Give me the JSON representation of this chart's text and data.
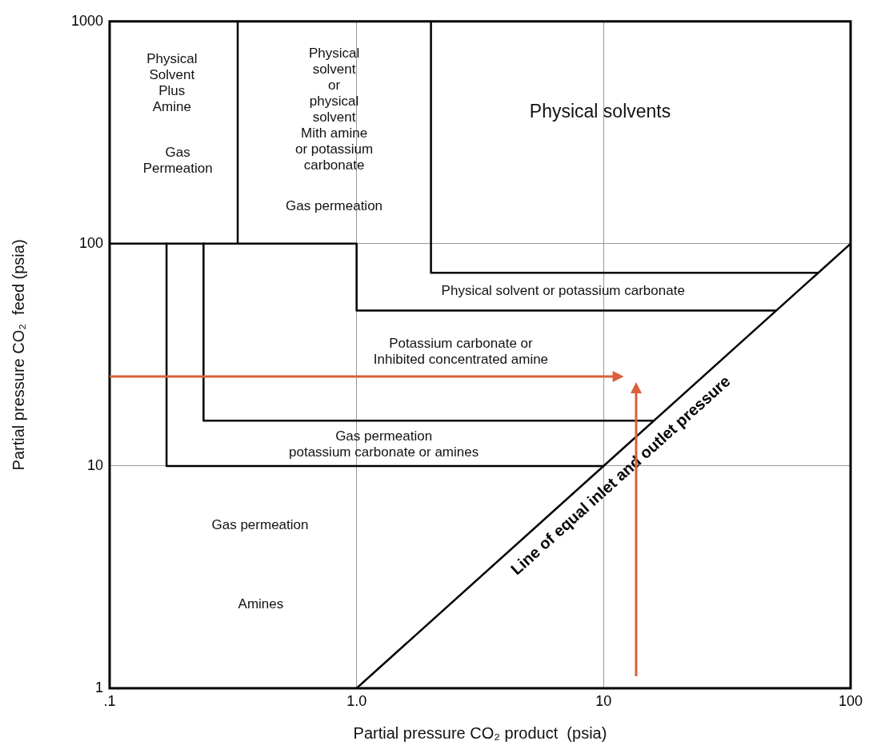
{
  "chart_data": {
    "type": "line",
    "xlabel": "Partial pressure CO₂ product  (psia)",
    "ylabel": "Partial pressure CO₂  feed (psia)",
    "log": "xy",
    "xlim": [
      0.1,
      100
    ],
    "xticks": [
      {
        "value": 0.1,
        "label": ".1"
      },
      {
        "value": 1,
        "label": "1.0"
      },
      10,
      100
    ],
    "ylim": [
      1,
      1000
    ],
    "yticks": [
      1,
      10,
      100,
      1000
    ],
    "grid": true,
    "legend": false,
    "series": [
      {
        "name": "Line of equal inlet and outlet pressure",
        "color": "#000000",
        "x": [
          1,
          100
        ],
        "values": [
          1,
          100
        ]
      },
      {
        "color": "#000000",
        "x": [
          0.1,
          1,
          1,
          50
        ],
        "values": [
          100,
          100,
          50,
          50
        ]
      },
      {
        "color": "#000000",
        "x": [
          0.33,
          0.33
        ],
        "values": [
          100,
          1000
        ]
      },
      {
        "color": "#000000",
        "x": [
          2,
          2,
          74
        ],
        "values": [
          1000,
          74,
          74
        ]
      },
      {
        "color": "#000000",
        "x": [
          0.17,
          0.17,
          10
        ],
        "values": [
          100,
          10,
          10
        ]
      },
      {
        "color": "#000000",
        "x": [
          0.24,
          0.24,
          16
        ],
        "values": [
          100,
          16,
          16
        ]
      }
    ],
    "annotations": [
      "Physical\nSolvent\nPlus\nAmine",
      "Gas\nPermeation",
      "Physical\nsolvent\nor\nphysical\nsolvent\nMith amine\nor potassium\ncarbonate",
      "Gas permeation",
      "Physical solvents",
      "Physical solvent or potassium carbonate",
      "Potassium carbonate or\nInhibited concentrated amine",
      "Gas permeation\npotassium carbonate or amines",
      "Gas permeation",
      "Amines"
    ]
  }
}
